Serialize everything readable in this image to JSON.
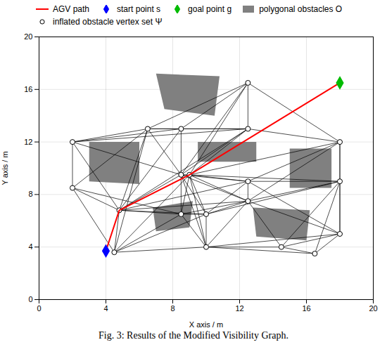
{
  "chart_data": {
    "type": "network",
    "caption": "Fig. 3: Results of the Modified Visibility Graph.",
    "xlabel": "X axis / m",
    "ylabel": "Y axis / m",
    "xlim": [
      0,
      20
    ],
    "ylim": [
      0,
      20
    ],
    "xticks": [
      0,
      4,
      8,
      12,
      16,
      20
    ],
    "yticks": [
      0,
      4,
      8,
      12,
      16,
      20
    ],
    "grid": true,
    "legend": "upper left",
    "series": [
      {
        "name": "AGV path",
        "type": "line",
        "color": "#ff0000",
        "points": [
          [
            4.0,
            3.7
          ],
          [
            4.8,
            6.8
          ],
          [
            9.0,
            9.5
          ],
          [
            18.0,
            16.5
          ]
        ]
      },
      {
        "name": "start point s",
        "type": "scatter",
        "marker": "diamond",
        "color": "#0000ff",
        "points": [
          [
            4.0,
            3.7
          ]
        ]
      },
      {
        "name": "goal point g",
        "type": "scatter",
        "marker": "diamond",
        "color": "#00bb00",
        "points": [
          [
            18.0,
            16.5
          ]
        ]
      },
      {
        "name": "polygonal obstacles O",
        "type": "polygon",
        "color": "#808080",
        "polygons": [
          [
            [
              7.5,
              14.5
            ],
            [
              10.5,
              14.0
            ],
            [
              10.8,
              17.0
            ],
            [
              7.0,
              17.2
            ]
          ],
          [
            [
              3.0,
              9.0
            ],
            [
              6.0,
              8.8
            ],
            [
              6.0,
              12.0
            ],
            [
              3.0,
              12.0
            ]
          ],
          [
            [
              9.5,
              10.5
            ],
            [
              13.0,
              10.5
            ],
            [
              13.0,
              12.0
            ],
            [
              9.5,
              12.0
            ]
          ],
          [
            [
              7.0,
              5.2
            ],
            [
              9.0,
              5.5
            ],
            [
              9.2,
              7.5
            ],
            [
              6.8,
              7.0
            ]
          ],
          [
            [
              13.0,
              4.8
            ],
            [
              16.0,
              4.5
            ],
            [
              16.2,
              6.8
            ],
            [
              12.8,
              7.0
            ]
          ],
          [
            [
              15.0,
              8.5
            ],
            [
              17.5,
              8.5
            ],
            [
              17.5,
              11.5
            ],
            [
              15.0,
              11.5
            ]
          ]
        ]
      },
      {
        "name": "inflated obstacle vertex set Ψ",
        "type": "graph",
        "marker": "circle",
        "color": "#ffffff",
        "edge_color": "#000000",
        "points": [
          [
            2.0,
            12.0
          ],
          [
            2.0,
            8.5
          ],
          [
            4.8,
            6.8
          ],
          [
            4.5,
            3.6
          ],
          [
            6.5,
            13.0
          ],
          [
            8.5,
            13.0
          ],
          [
            8.5,
            9.5
          ],
          [
            8.5,
            6.5
          ],
          [
            10.0,
            6.5
          ],
          [
            10.0,
            4.0
          ],
          [
            9.0,
            9.5
          ],
          [
            12.5,
            9.0
          ],
          [
            12.5,
            7.5
          ],
          [
            12.5,
            13.0
          ],
          [
            12.5,
            16.5
          ],
          [
            18.0,
            12.0
          ],
          [
            18.0,
            9.0
          ],
          [
            18.0,
            5.0
          ],
          [
            16.5,
            3.5
          ],
          [
            14.5,
            4.0
          ]
        ],
        "edges": [
          [
            0,
            1
          ],
          [
            0,
            2
          ],
          [
            0,
            4
          ],
          [
            0,
            5
          ],
          [
            0,
            6
          ],
          [
            0,
            13
          ],
          [
            1,
            2
          ],
          [
            1,
            3
          ],
          [
            1,
            4
          ],
          [
            1,
            7
          ],
          [
            2,
            3
          ],
          [
            2,
            4
          ],
          [
            2,
            5
          ],
          [
            2,
            6
          ],
          [
            2,
            7
          ],
          [
            2,
            8
          ],
          [
            2,
            10
          ],
          [
            2,
            11
          ],
          [
            2,
            12
          ],
          [
            2,
            13
          ],
          [
            3,
            4
          ],
          [
            3,
            7
          ],
          [
            3,
            8
          ],
          [
            3,
            9
          ],
          [
            3,
            10
          ],
          [
            4,
            5
          ],
          [
            4,
            6
          ],
          [
            4,
            13
          ],
          [
            4,
            14
          ],
          [
            5,
            6
          ],
          [
            5,
            13
          ],
          [
            5,
            14
          ],
          [
            6,
            7
          ],
          [
            6,
            8
          ],
          [
            6,
            9
          ],
          [
            6,
            10
          ],
          [
            6,
            11
          ],
          [
            6,
            12
          ],
          [
            6,
            13
          ],
          [
            6,
            14
          ],
          [
            7,
            8
          ],
          [
            7,
            9
          ],
          [
            7,
            10
          ],
          [
            7,
            12
          ],
          [
            8,
            9
          ],
          [
            8,
            10
          ],
          [
            8,
            11
          ],
          [
            8,
            12
          ],
          [
            8,
            16
          ],
          [
            9,
            10
          ],
          [
            9,
            12
          ],
          [
            9,
            17
          ],
          [
            9,
            18
          ],
          [
            9,
            19
          ],
          [
            10,
            11
          ],
          [
            10,
            12
          ],
          [
            10,
            13
          ],
          [
            10,
            14
          ],
          [
            10,
            15
          ],
          [
            10,
            16
          ],
          [
            11,
            12
          ],
          [
            11,
            15
          ],
          [
            11,
            16
          ],
          [
            11,
            17
          ],
          [
            12,
            15
          ],
          [
            12,
            16
          ],
          [
            12,
            17
          ],
          [
            12,
            19
          ],
          [
            13,
            14
          ],
          [
            13,
            15
          ],
          [
            14,
            15
          ],
          [
            15,
            16
          ],
          [
            15,
            17
          ],
          [
            16,
            17
          ],
          [
            16,
            18
          ],
          [
            16,
            19
          ],
          [
            17,
            18
          ],
          [
            17,
            19
          ],
          [
            18,
            19
          ]
        ]
      }
    ]
  }
}
